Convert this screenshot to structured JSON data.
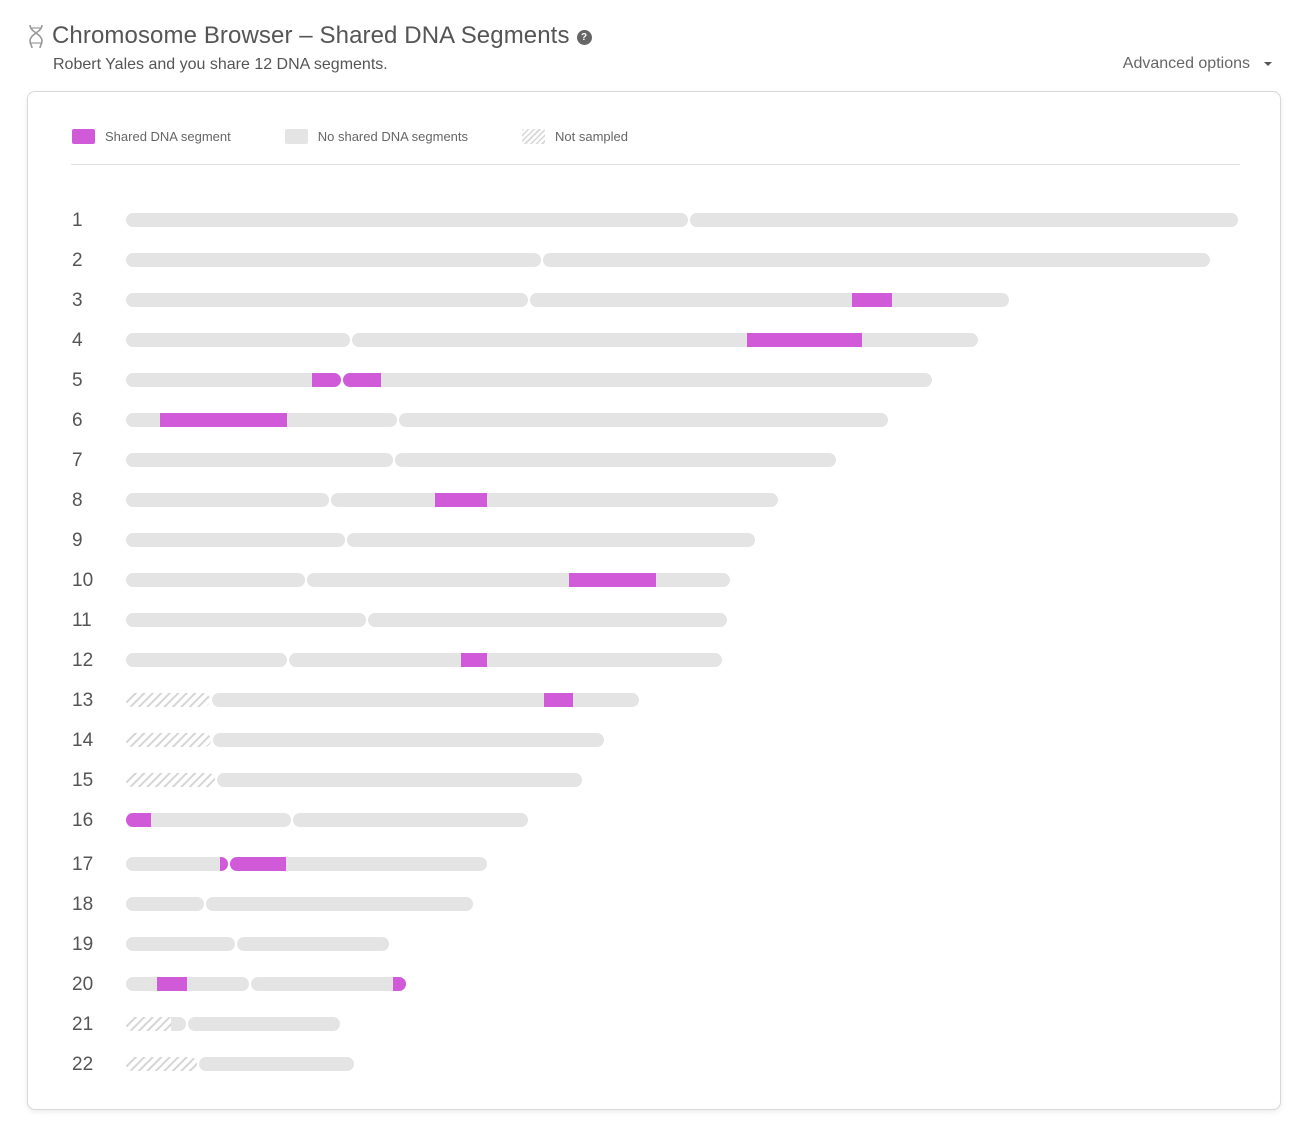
{
  "header": {
    "title": "Chromosome Browser – Shared DNA Segments",
    "help_icon": "?",
    "subtitle": "Robert Yales and you share 12 DNA segments.",
    "advanced_options": "Advanced options"
  },
  "legend": {
    "shared": "Shared DNA segment",
    "none": "No shared DNA segments",
    "not_sampled": "Not sampled"
  },
  "colors": {
    "shared": "#d15ad9",
    "no_shared": "#e4e4e4",
    "not_sampled": "#d5d5d5"
  },
  "chromosomes": [
    {
      "label": "1",
      "length": 1112,
      "centromere": 562,
      "not_sampled": 0,
      "segments": []
    },
    {
      "label": "2",
      "length": 1084,
      "centromere": 415,
      "not_sampled": 0,
      "segments": []
    },
    {
      "label": "3",
      "length": 883,
      "centromere": 402,
      "not_sampled": 0,
      "segments": [
        [
          726,
          766
        ]
      ]
    },
    {
      "label": "4",
      "length": 852,
      "centromere": 224,
      "not_sampled": 0,
      "segments": [
        [
          621,
          736
        ]
      ]
    },
    {
      "label": "5",
      "length": 806,
      "centromere": 215,
      "not_sampled": 0,
      "segments": [
        [
          186,
          255
        ]
      ]
    },
    {
      "label": "6",
      "length": 762,
      "centromere": 271,
      "not_sampled": 0,
      "segments": [
        [
          34,
          161
        ]
      ]
    },
    {
      "label": "7",
      "length": 710,
      "centromere": 267,
      "not_sampled": 0,
      "segments": []
    },
    {
      "label": "8",
      "length": 652,
      "centromere": 203,
      "not_sampled": 0,
      "segments": [
        [
          309,
          361
        ]
      ]
    },
    {
      "label": "9",
      "length": 629,
      "centromere": 219,
      "not_sampled": 0,
      "segments": []
    },
    {
      "label": "10",
      "length": 604,
      "centromere": 179,
      "not_sampled": 0,
      "segments": [
        [
          443,
          530
        ]
      ]
    },
    {
      "label": "11",
      "length": 601,
      "centromere": 240,
      "not_sampled": 0,
      "segments": []
    },
    {
      "label": "12",
      "length": 596,
      "centromere": 161,
      "not_sampled": 0,
      "segments": [
        [
          335,
          361
        ]
      ]
    },
    {
      "label": "13",
      "length": 513,
      "centromere": 84,
      "not_sampled": 84,
      "segments": [
        [
          418,
          447
        ]
      ]
    },
    {
      "label": "14",
      "length": 478,
      "centromere": 85,
      "not_sampled": 85,
      "segments": []
    },
    {
      "label": "15",
      "length": 456,
      "centromere": 89,
      "not_sampled": 89,
      "segments": []
    },
    {
      "label": "16",
      "length": 402,
      "centromere": 165,
      "not_sampled": 0,
      "segments": [
        [
          0,
          25
        ]
      ]
    },
    {
      "label": "17",
      "length": 361,
      "centromere": 102,
      "not_sampled": 0,
      "segments": [
        [
          94,
          160
        ]
      ]
    },
    {
      "label": "18",
      "length": 347,
      "centromere": 78,
      "not_sampled": 0,
      "segments": []
    },
    {
      "label": "19",
      "length": 263,
      "centromere": 109,
      "not_sampled": 0,
      "segments": []
    },
    {
      "label": "20",
      "length": 280,
      "centromere": 123,
      "not_sampled": 0,
      "segments": [
        [
          31,
          61
        ],
        [
          267,
          280
        ]
      ]
    },
    {
      "label": "21",
      "length": 214,
      "centromere": 60,
      "not_sampled": 45,
      "segments": []
    },
    {
      "label": "22",
      "length": 228,
      "centromere": 71,
      "not_sampled": 71,
      "segments": []
    }
  ]
}
